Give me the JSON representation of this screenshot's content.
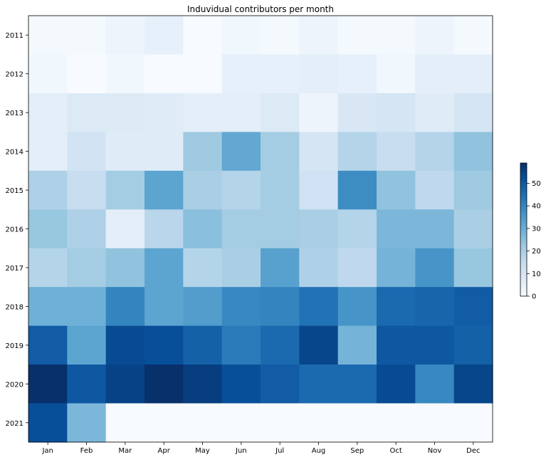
{
  "chart_data": {
    "type": "heatmap",
    "title": "Induvidual contributors per month",
    "xlabel": "",
    "ylabel": "",
    "x_categories": [
      "Jan",
      "Feb",
      "Mar",
      "Apr",
      "May",
      "Jun",
      "Jul",
      "Aug",
      "Sep",
      "Oct",
      "Nov",
      "Dec"
    ],
    "y_categories": [
      "2011",
      "2012",
      "2013",
      "2014",
      "2015",
      "2016",
      "2017",
      "2018",
      "2019",
      "2020",
      "2021"
    ],
    "values": [
      [
        1,
        1,
        3,
        5,
        0,
        2,
        1,
        3,
        1,
        1,
        3,
        1
      ],
      [
        2,
        0,
        2,
        0,
        0,
        5,
        5,
        6,
        5,
        2,
        6,
        6
      ],
      [
        6,
        8,
        8,
        7,
        6,
        6,
        8,
        3,
        9,
        10,
        7,
        10
      ],
      [
        6,
        11,
        7,
        7,
        22,
        31,
        21,
        10,
        18,
        14,
        18,
        24
      ],
      [
        19,
        14,
        21,
        32,
        20,
        18,
        21,
        12,
        38,
        24,
        16,
        22
      ],
      [
        23,
        19,
        6,
        17,
        25,
        21,
        21,
        20,
        18,
        27,
        27,
        20
      ],
      [
        18,
        21,
        24,
        32,
        18,
        20,
        33,
        19,
        16,
        28,
        36,
        23
      ],
      [
        29,
        29,
        40,
        32,
        34,
        39,
        40,
        44,
        36,
        46,
        47,
        49
      ],
      [
        49,
        32,
        53,
        52,
        48,
        42,
        46,
        54,
        28,
        50,
        50,
        48
      ],
      [
        59,
        50,
        55,
        59,
        56,
        52,
        49,
        46,
        46,
        53,
        39,
        54
      ],
      [
        52,
        27,
        0,
        0,
        0,
        0,
        0,
        0,
        0,
        0,
        0,
        0
      ]
    ],
    "colorbar": {
      "min": 0,
      "max": 59,
      "ticks": [
        0,
        10,
        20,
        30,
        40,
        50
      ],
      "colormap": "Blues"
    },
    "grid": false
  }
}
